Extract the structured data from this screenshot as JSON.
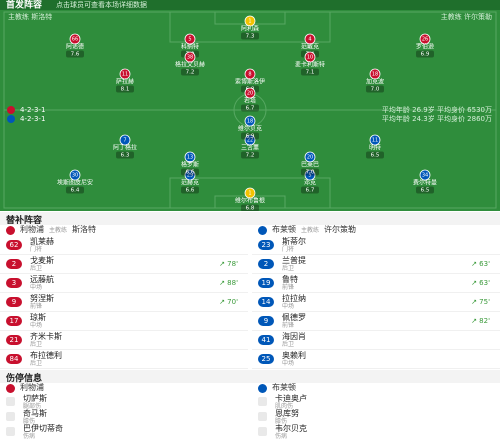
{
  "header": {
    "title": "首发阵容",
    "subtitle": "点击球员可查看本场详细数据"
  },
  "home": {
    "coach": "主教练 斯洛特",
    "formation": "4-2-3-1",
    "info": "平均年龄 26.9岁  平均身价 6530万",
    "players": [
      {
        "number": "1",
        "name": "阿利森",
        "rating": "7.3"
      },
      {
        "number": "66",
        "name": "阿诺德",
        "rating": "7.6"
      },
      {
        "number": "5",
        "name": "科纳特",
        "rating": "7.0"
      },
      {
        "number": "4",
        "name": "范戴克",
        "rating": "7.4"
      },
      {
        "number": "26",
        "name": "罗伯逊",
        "rating": "6.9"
      },
      {
        "number": "38",
        "name": "格拉文贝赫",
        "rating": "7.2"
      },
      {
        "number": "10",
        "name": "麦卡利斯特",
        "rating": "7.1"
      },
      {
        "number": "11",
        "name": "萨拉赫",
        "rating": "8.1"
      },
      {
        "number": "8",
        "name": "索博斯洛伊",
        "rating": "6.8"
      },
      {
        "number": "18",
        "name": "加克波",
        "rating": "7.0"
      },
      {
        "number": "20",
        "name": "若塔",
        "rating": "6.7"
      }
    ]
  },
  "away": {
    "coach": "主教练 许尔策勒",
    "formation": "4-2-3-1",
    "info": "平均年龄 24.3岁  平均身价 2860万",
    "players": [
      {
        "number": "1",
        "name": "维尔布鲁根",
        "rating": "6.8"
      },
      {
        "number": "34",
        "name": "费尔特曼",
        "rating": "6.5"
      },
      {
        "number": "5",
        "name": "邓克",
        "rating": "6.7"
      },
      {
        "number": "29",
        "name": "范赫克",
        "rating": "6.6"
      },
      {
        "number": "30",
        "name": "埃斯图皮尼安",
        "rating": "6.4"
      },
      {
        "number": "20",
        "name": "巴莱巴",
        "rating": "7.0"
      },
      {
        "number": "13",
        "name": "格罗斯",
        "rating": "6.6"
      },
      {
        "number": "11",
        "name": "明特",
        "rating": "6.5"
      },
      {
        "number": "22",
        "name": "三笘薰",
        "rating": "7.2"
      },
      {
        "number": "7",
        "name": "阿丁格拉",
        "rating": "6.3"
      },
      {
        "number": "18",
        "name": "维尔贝克",
        "rating": "6.9"
      }
    ]
  },
  "subs": {
    "title": "替补阵容",
    "home": {
      "team": "利物浦",
      "coach": "斯洛特",
      "coach_role": "主教练",
      "players": [
        {
          "number": "62",
          "name": "凯莱赫",
          "position": "门将"
        },
        {
          "number": "2",
          "name": "戈麦斯",
          "position": "后卫",
          "minute": "↗ 78'"
        },
        {
          "number": "3",
          "name": "远藤航",
          "position": "中场",
          "minute": "↗ 88'"
        },
        {
          "number": "9",
          "name": "努涅斯",
          "position": "前锋",
          "minute": "↗ 70'"
        },
        {
          "number": "17",
          "name": "琼斯",
          "position": "中场"
        },
        {
          "number": "21",
          "name": "齐米卡斯",
          "position": "后卫"
        },
        {
          "number": "84",
          "name": "布拉德利",
          "position": "后卫"
        }
      ]
    },
    "away": {
      "team": "布莱顿",
      "coach": "许尔策勒",
      "coach_role": "主教练",
      "players": [
        {
          "number": "23",
          "name": "斯蒂尔",
          "position": "门将"
        },
        {
          "number": "2",
          "name": "兰普提",
          "position": "后卫",
          "minute": "↗ 63'"
        },
        {
          "number": "19",
          "name": "鲁特",
          "position": "前锋",
          "minute": "↗ 63'"
        },
        {
          "number": "14",
          "name": "拉拉纳",
          "position": "中场",
          "minute": "↗ 75'"
        },
        {
          "number": "9",
          "name": "佩德罗",
          "position": "前锋",
          "minute": "↗ 82'"
        },
        {
          "number": "41",
          "name": "海因肖",
          "position": "后卫"
        },
        {
          "number": "25",
          "name": "奥赖利",
          "position": "中场"
        }
      ]
    }
  },
  "injuries": {
    "title": "伤停信息",
    "home": {
      "team": "利物浦",
      "players": [
        {
          "name": "切萨斯",
          "reason": "腿部伤"
        },
        {
          "name": "奇马斯",
          "reason": "膝伤"
        },
        {
          "name": "巴伊切蒂奇",
          "reason": "伤病"
        }
      ]
    },
    "away": {
      "team": "布莱顿",
      "players": [
        {
          "name": "卡迪奥卢",
          "reason": "肌肉伤"
        },
        {
          "name": "恩库努",
          "reason": "膝伤"
        },
        {
          "name": "韦尔贝克",
          "reason": "伤病"
        }
      ]
    }
  }
}
